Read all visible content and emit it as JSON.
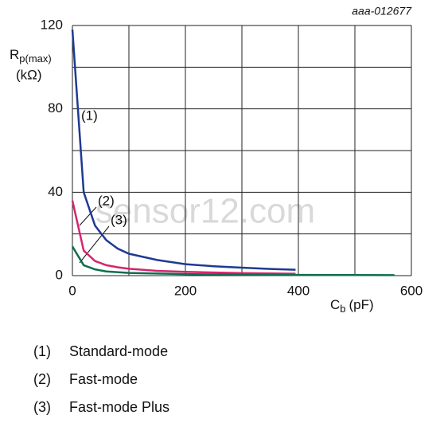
{
  "chart_data": {
    "type": "line",
    "code": "aaa-012677",
    "watermark": "sensor12.com",
    "ylabel": {
      "main": "R",
      "sub": "p(max)",
      "unit": "(kΩ)"
    },
    "xlabel": {
      "main": "C",
      "sub": "b",
      "unit": "(pF)"
    },
    "xlim": [
      0,
      600
    ],
    "ylim": [
      0,
      120
    ],
    "xticks": [
      0,
      200,
      400,
      600
    ],
    "yticks": [
      0,
      40,
      80,
      120
    ],
    "xgrid": [
      0,
      100,
      200,
      300,
      400,
      500,
      600
    ],
    "ygrid": [
      0,
      20,
      40,
      60,
      80,
      100,
      120
    ],
    "series": [
      {
        "name": "Standard-mode",
        "label": "(1)",
        "color": "#1f3a93",
        "x": [
          0,
          20,
          40,
          60,
          80,
          100,
          150,
          200,
          250,
          300,
          350,
          395
        ],
        "values": [
          118,
          40,
          24,
          17,
          13,
          10.5,
          7.5,
          5.5,
          4.5,
          3.8,
          3.2,
          2.8
        ]
      },
      {
        "name": "Fast-mode",
        "label": "(2)",
        "color": "#d6246e",
        "x": [
          0,
          20,
          40,
          60,
          80,
          100,
          150,
          200,
          300,
          395
        ],
        "values": [
          36,
          12,
          7,
          5,
          4,
          3.3,
          2.3,
          1.8,
          1.2,
          0.9
        ]
      },
      {
        "name": "Fast-mode Plus",
        "label": "(3)",
        "color": "#0f6e4e",
        "x": [
          0,
          20,
          40,
          60,
          100,
          200,
          300,
          400,
          570
        ],
        "values": [
          14,
          5,
          3,
          2,
          1.3,
          0.7,
          0.5,
          0.35,
          0.25
        ]
      }
    ]
  }
}
